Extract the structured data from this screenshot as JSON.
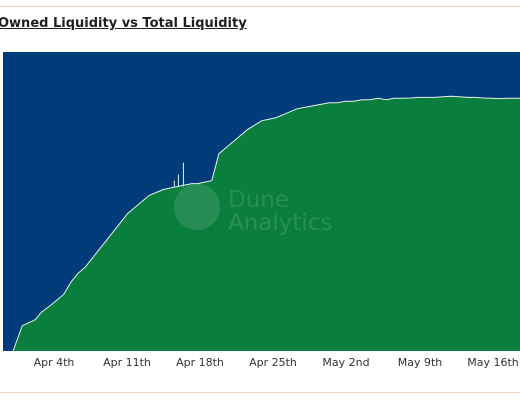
{
  "chart_data": {
    "type": "area",
    "title": "Owned Liquidity vs Total Liquidity",
    "xlabel": "",
    "ylabel": "",
    "x_ticks": [
      "Apr 4th",
      "Apr 11th",
      "Apr 18th",
      "Apr 25th",
      "May 2nd",
      "May 9th",
      "May 16th"
    ],
    "x_range": [
      "Mar 29",
      "May 19"
    ],
    "y_range_fraction_of_total": [
      0,
      1
    ],
    "grid": false,
    "legend": "none",
    "series": [
      {
        "name": "",
        "color": "#003b7a",
        "description_values": "total liquidity (normalized to 1.0)",
        "x": [
          0,
          51
        ],
        "y": [
          1.0,
          1.0
        ]
      },
      {
        "name": "",
        "color": "#0a7e3d",
        "x": [
          1.0,
          1.9,
          2.6,
          3.2,
          3.8,
          4.6,
          5.3,
          6.0,
          6.7,
          7.4,
          8.1,
          8.8,
          9.5,
          10.2,
          10.9,
          11.6,
          12.3,
          13.0,
          13.7,
          14.4,
          15.1,
          15.8,
          16.5,
          17.2,
          17.9,
          18.6,
          19.2,
          19.9,
          20.6,
          21.3,
          22.0,
          22.7,
          23.4,
          24.1,
          24.8,
          25.5,
          26.2,
          26.9,
          27.6,
          28.3,
          29.0,
          29.8,
          30.6,
          31.4,
          32.2,
          33.0,
          33.8,
          34.6,
          35.4,
          36.2,
          37.0,
          37.8,
          38.6,
          39.4,
          40.2,
          41.0,
          41.8,
          42.6,
          43.4,
          44.2,
          45.0,
          45.8,
          46.6,
          47.4,
          48.2,
          49.0,
          49.8,
          50.6,
          51.0
        ],
        "y": [
          0.0,
          0.085,
          0.095,
          0.105,
          0.13,
          0.15,
          0.17,
          0.19,
          0.23,
          0.26,
          0.28,
          0.31,
          0.34,
          0.37,
          0.4,
          0.43,
          0.46,
          0.48,
          0.5,
          0.52,
          0.53,
          0.54,
          0.545,
          0.55,
          0.555,
          0.56,
          0.56,
          0.565,
          0.57,
          0.66,
          0.68,
          0.7,
          0.72,
          0.74,
          0.755,
          0.77,
          0.775,
          0.78,
          0.79,
          0.8,
          0.81,
          0.815,
          0.82,
          0.825,
          0.83,
          0.83,
          0.835,
          0.835,
          0.84,
          0.84,
          0.845,
          0.84,
          0.845,
          0.845,
          0.846,
          0.848,
          0.848,
          0.848,
          0.85,
          0.852,
          0.85,
          0.848,
          0.848,
          0.846,
          0.845,
          0.844,
          0.845,
          0.845,
          0.845
        ]
      }
    ],
    "annotations": [
      {
        "text": "Dune",
        "kind": "watermark"
      },
      {
        "text": "Analytics",
        "kind": "watermark"
      }
    ]
  }
}
